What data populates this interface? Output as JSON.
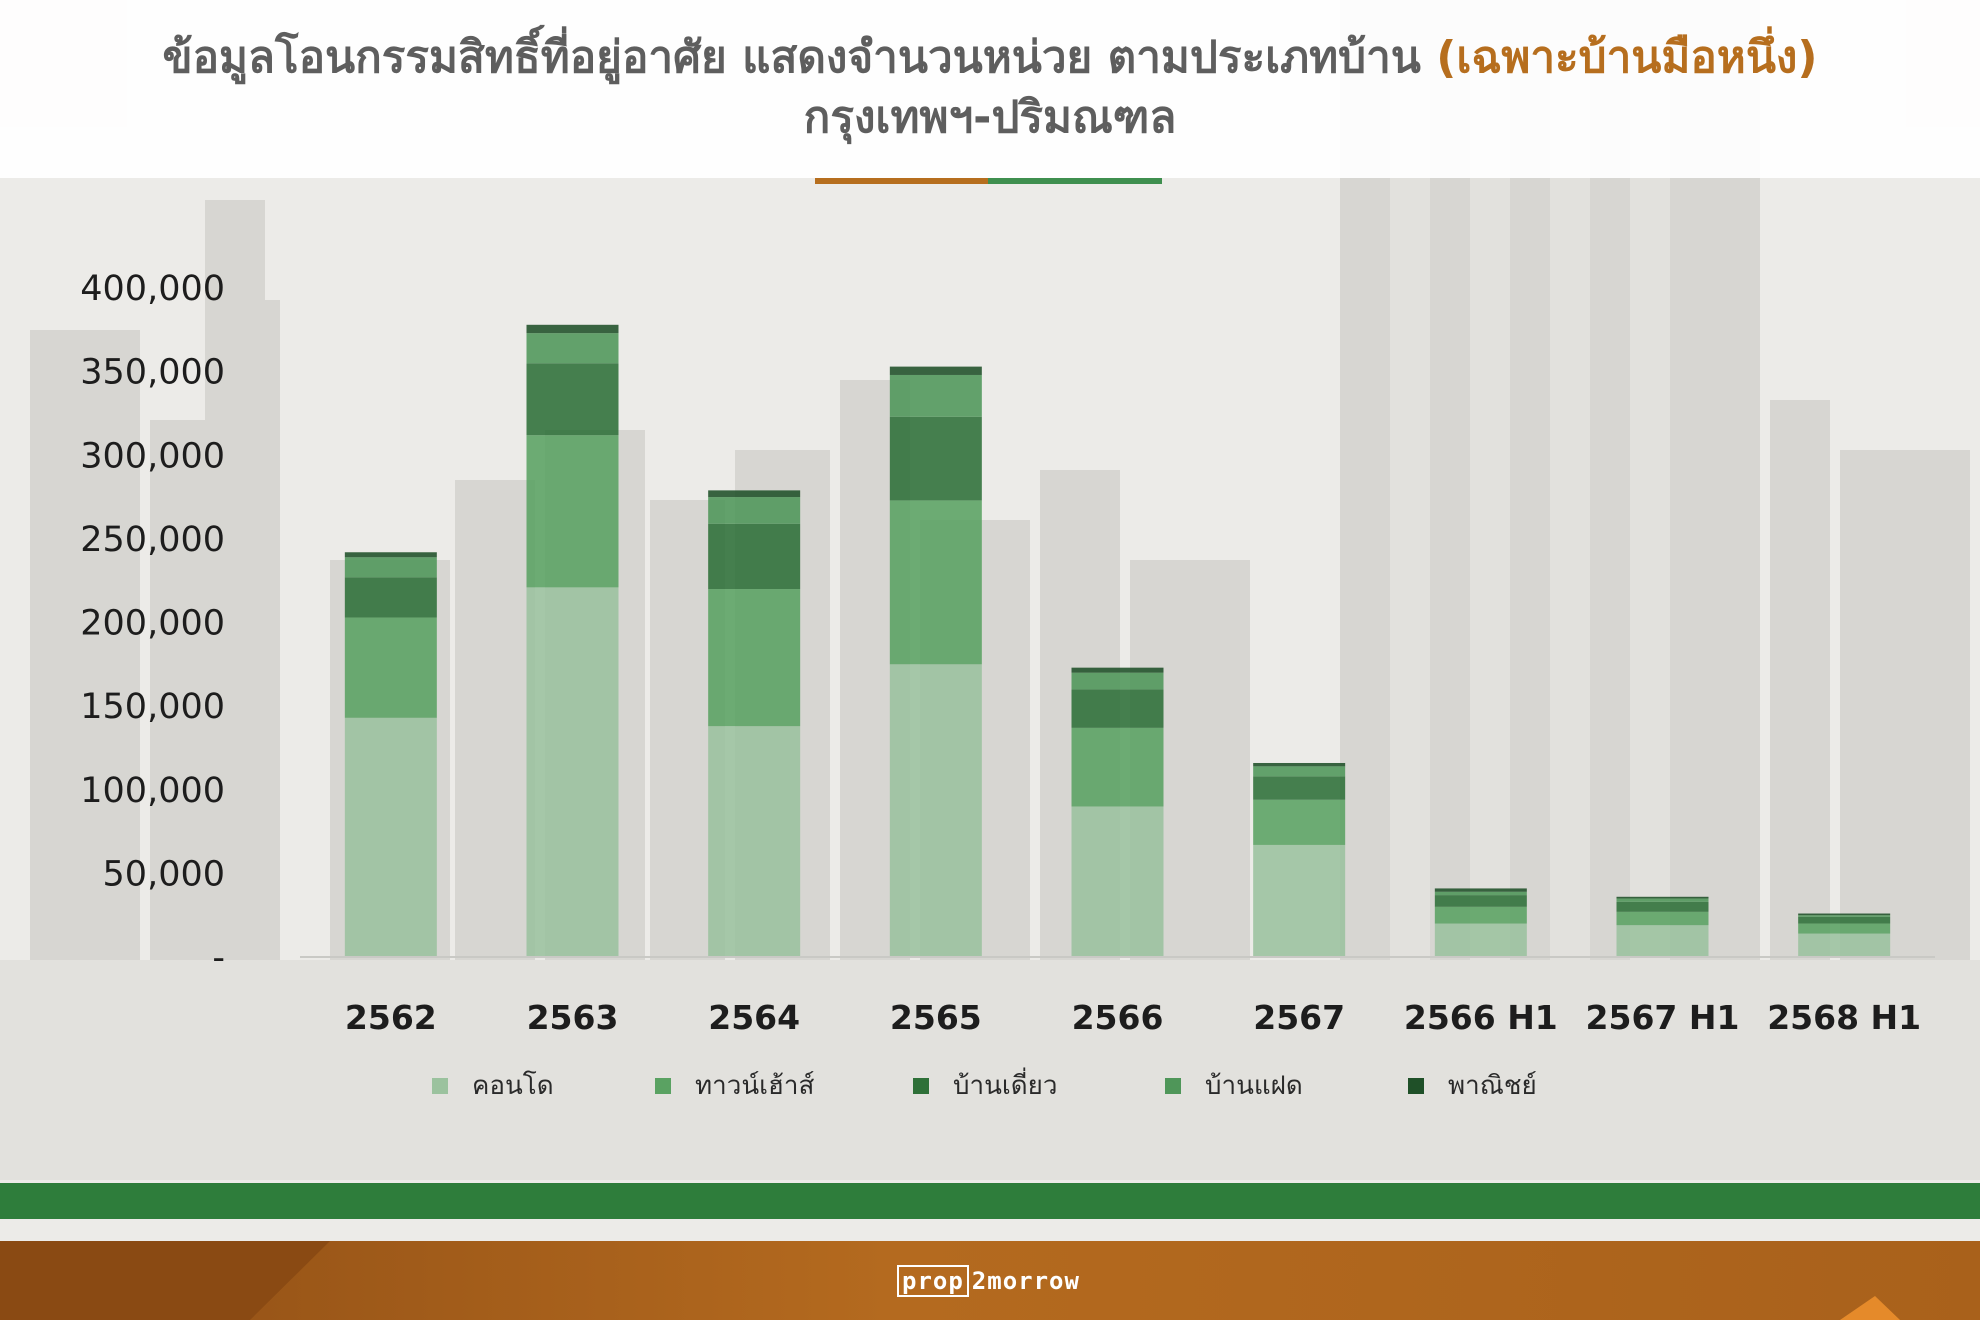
{
  "title": {
    "line1_main": "ข้อมูลโอนกรรมสิทธิ์ที่อยู่อาศัย แสดงจำนวนหน่วย ตามประเภทบ้าน",
    "line1_highlight": "(เฉพาะบ้านมือหนึ่ง)",
    "line2": "กรุงเทพฯ-ปริมณฑล"
  },
  "footer": {
    "brand_box": "prop",
    "brand_rest": "2morrow"
  },
  "colors": {
    "title_text": "#5e5e5e",
    "highlight": "#b66e1e",
    "green_band": "#2e7d3b",
    "footer": "#a9611b"
  },
  "chart_data": {
    "type": "bar",
    "stacked": true,
    "categories": [
      "2562",
      "2563",
      "2564",
      "2565",
      "2566",
      "2567",
      "2566  H1",
      "2567  H1",
      "2568  H1"
    ],
    "series": [
      {
        "name": "คอนโด",
        "color": "#9bc29e",
        "values": [
          143000,
          221000,
          138000,
          175000,
          90000,
          67000,
          20000,
          19000,
          14000
        ]
      },
      {
        "name": "ทาวน์เฮ้าส์",
        "color": "#5aa262",
        "values": [
          60000,
          91000,
          82000,
          98000,
          47000,
          27000,
          10000,
          8000,
          6000
        ]
      },
      {
        "name": "บ้านเดี่ยว",
        "color": "#2e7038",
        "values": [
          24000,
          43000,
          39000,
          50000,
          23000,
          14000,
          7000,
          6000,
          4000
        ]
      },
      {
        "name": "บ้านแฝด",
        "color": "#4f9659",
        "values": [
          12000,
          18000,
          16000,
          25000,
          10000,
          6000,
          2000,
          2000,
          1000
        ]
      },
      {
        "name": "พาณิชย์",
        "color": "#1f5028",
        "values": [
          3000,
          5000,
          4000,
          5000,
          3000,
          2000,
          2000,
          1000,
          1000
        ]
      }
    ],
    "yticks": [
      0,
      50000,
      100000,
      150000,
      200000,
      250000,
      300000,
      350000,
      400000
    ],
    "ytick_labels": [
      "-",
      "50,000",
      "100,000",
      "150,000",
      "200,000",
      "250,000",
      "300,000",
      "350,000",
      "400,000"
    ],
    "ylim": [
      0,
      400000
    ],
    "legend_position": "bottom",
    "grid": false
  }
}
